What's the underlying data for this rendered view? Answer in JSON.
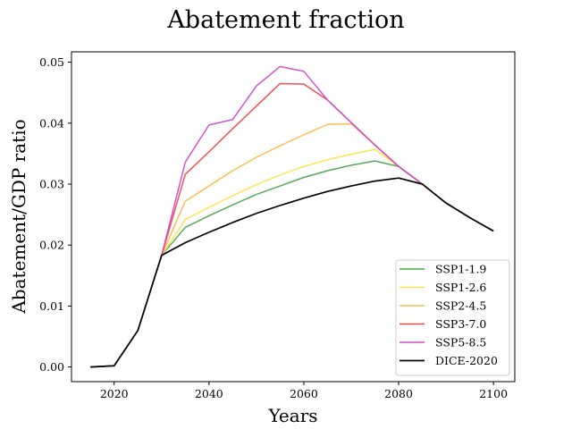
{
  "chart_data": {
    "type": "line",
    "title": "Abatement fraction",
    "xlabel": "Years",
    "ylabel": "Abatement/GDP ratio",
    "xlim": [
      2011,
      2104.5
    ],
    "ylim": [
      -0.0024,
      0.0517
    ],
    "xticks": [
      2020,
      2040,
      2060,
      2080,
      2100
    ],
    "yticks": [
      0.0,
      0.01,
      0.02,
      0.03,
      0.04,
      0.05
    ],
    "ytick_labels": [
      "0.00",
      "0.01",
      "0.02",
      "0.03",
      "0.04",
      "0.05"
    ],
    "grid": false,
    "legend_position": "lower-right",
    "x": [
      2015,
      2020,
      2025,
      2030,
      2035,
      2040,
      2045,
      2050,
      2055,
      2060,
      2065,
      2070,
      2075,
      2080,
      2085,
      2090,
      2095,
      2100
    ],
    "series": [
      {
        "name": "SSP1-1.9",
        "color": "#4ca64c",
        "width": 1.5,
        "values": [
          0.0,
          0.0002,
          0.006,
          0.0183,
          0.0229,
          0.0248,
          0.0266,
          0.0283,
          0.0297,
          0.0311,
          0.0322,
          0.0331,
          0.0338,
          0.0329,
          0.03,
          0.0269,
          0.0245,
          0.0223
        ]
      },
      {
        "name": "SSP1-2.6",
        "color": "#ffe14d",
        "width": 1.5,
        "values": [
          0.0,
          0.0002,
          0.006,
          0.0183,
          0.0242,
          0.0262,
          0.0281,
          0.0299,
          0.0315,
          0.0329,
          0.034,
          0.0349,
          0.0357,
          0.0329,
          0.03,
          0.0269,
          0.0245,
          0.0223
        ]
      },
      {
        "name": "SSP2-4.5",
        "color": "#ffbb4d",
        "width": 1.5,
        "values": [
          0.0,
          0.0002,
          0.006,
          0.0183,
          0.0272,
          0.0297,
          0.0322,
          0.0344,
          0.0363,
          0.0381,
          0.0398,
          0.0399,
          0.0364,
          0.0329,
          0.03,
          0.0269,
          0.0245,
          0.0223
        ]
      },
      {
        "name": "SSP3-7.0",
        "color": "#f04848",
        "width": 1.5,
        "values": [
          0.0,
          0.0002,
          0.006,
          0.0183,
          0.0316,
          0.0353,
          0.0391,
          0.0428,
          0.0465,
          0.0464,
          0.0438,
          0.0401,
          0.0364,
          0.0329,
          0.03,
          0.0269,
          0.0245,
          0.0223
        ]
      },
      {
        "name": "SSP5-8.5",
        "color": "#cc4dcc",
        "width": 1.5,
        "values": [
          0.0,
          0.0002,
          0.006,
          0.0183,
          0.0336,
          0.0397,
          0.0406,
          0.0461,
          0.0493,
          0.0485,
          0.0438,
          0.0401,
          0.0364,
          0.0329,
          0.03,
          0.0269,
          0.0245,
          0.0223
        ]
      },
      {
        "name": "DICE-2020",
        "color": "#000000",
        "width": 1.7,
        "values": [
          0.0,
          0.0002,
          0.006,
          0.0183,
          0.0204,
          0.0221,
          0.0237,
          0.0252,
          0.0265,
          0.0277,
          0.0288,
          0.0297,
          0.0305,
          0.031,
          0.03,
          0.0269,
          0.0245,
          0.0223
        ]
      }
    ]
  }
}
